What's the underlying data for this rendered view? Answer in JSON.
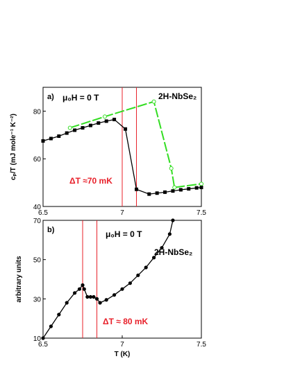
{
  "chart_data": [
    {
      "type": "line",
      "panel_label": "a)",
      "ylabel": "cₚ/T (mJ mole⁻¹ K⁻²)",
      "xlim": [
        6.5,
        7.5
      ],
      "xticks": [
        6.5,
        7,
        7.5
      ],
      "ylim": [
        40,
        90
      ],
      "yticks": [
        40,
        60,
        80
      ],
      "annotations": [
        "μ₀H = 0 T",
        "2H-NbSe₂",
        "ΔT ≈70 mK"
      ],
      "vlines": {
        "color": "#e8202a",
        "x": [
          7.0,
          7.09
        ]
      },
      "series": [
        {
          "color": "#000000",
          "marker": "square",
          "x": [
            6.5,
            6.55,
            6.6,
            6.65,
            6.7,
            6.75,
            6.8,
            6.85,
            6.9,
            6.95,
            7.02,
            7.09,
            7.17,
            7.22,
            7.27,
            7.32,
            7.37,
            7.42,
            7.47,
            7.5
          ],
          "values": [
            67.5,
            68.5,
            69.5,
            70.8,
            72,
            73,
            74,
            75,
            75.8,
            76.5,
            72.5,
            47.2,
            45.2,
            45.6,
            46,
            46.5,
            47,
            47.4,
            47.8,
            48
          ]
        },
        {
          "color": "#33dd22",
          "marker": "circle-open",
          "x": [
            6.67,
            6.89,
            7.2,
            7.31,
            7.33,
            7.5
          ],
          "values": [
            73,
            77.7,
            84,
            56,
            48,
            49.5
          ]
        }
      ]
    },
    {
      "type": "line",
      "panel_label": "b)",
      "ylabel": "arbitrary units",
      "xlabel": "T (K)",
      "xlim": [
        6.5,
        7.5
      ],
      "xticks": [
        6.5,
        7,
        7.5
      ],
      "ylim": [
        10,
        70
      ],
      "yticks": [
        10,
        30,
        50,
        70
      ],
      "annotations": [
        "μ₀H = 0 T",
        "2H-NbSe₂",
        "ΔT ≈ 80 mK"
      ],
      "vlines": {
        "color": "#e8202a",
        "x": [
          6.75,
          6.84
        ]
      },
      "series": [
        {
          "color": "#000000",
          "marker": "dot",
          "x": [
            6.5,
            6.55,
            6.6,
            6.65,
            6.7,
            6.73,
            6.75,
            6.76,
            6.78,
            6.8,
            6.82,
            6.84,
            6.86,
            6.9,
            6.95,
            7.0,
            7.05,
            7.1,
            7.15,
            7.2,
            7.25,
            7.3,
            7.32
          ],
          "values": [
            10,
            16,
            22,
            28,
            33,
            35,
            37,
            35,
            31,
            31,
            31,
            30,
            28,
            29.5,
            32,
            35,
            38,
            42,
            46,
            51,
            56,
            63,
            70
          ]
        }
      ]
    }
  ]
}
